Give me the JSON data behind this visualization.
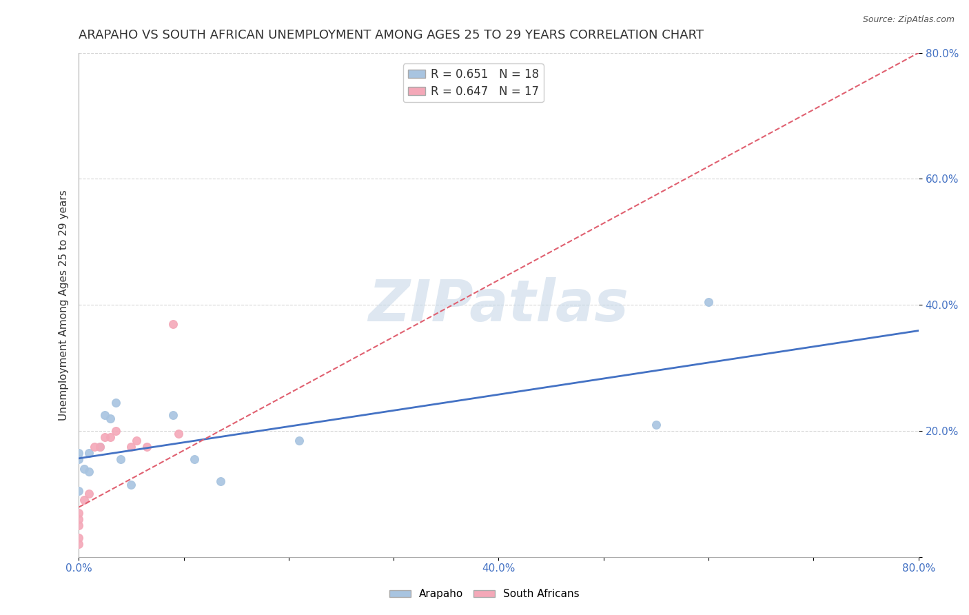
{
  "title": "ARAPAHO VS SOUTH AFRICAN UNEMPLOYMENT AMONG AGES 25 TO 29 YEARS CORRELATION CHART",
  "source": "Source: ZipAtlas.com",
  "ylabel": "Unemployment Among Ages 25 to 29 years",
  "xlabel": "",
  "xlim": [
    0.0,
    0.8
  ],
  "ylim": [
    0.0,
    0.8
  ],
  "xticks": [
    0.0,
    0.1,
    0.2,
    0.3,
    0.4,
    0.5,
    0.6,
    0.7,
    0.8
  ],
  "yticks": [
    0.0,
    0.2,
    0.4,
    0.6,
    0.8
  ],
  "arapaho_x": [
    0.0,
    0.0,
    0.0,
    0.005,
    0.01,
    0.01,
    0.02,
    0.025,
    0.03,
    0.035,
    0.04,
    0.05,
    0.09,
    0.11,
    0.135,
    0.21,
    0.55,
    0.6
  ],
  "arapaho_y": [
    0.155,
    0.165,
    0.105,
    0.14,
    0.135,
    0.165,
    0.175,
    0.225,
    0.22,
    0.245,
    0.155,
    0.115,
    0.225,
    0.155,
    0.12,
    0.185,
    0.21,
    0.405
  ],
  "south_african_x": [
    0.0,
    0.0,
    0.0,
    0.0,
    0.0,
    0.005,
    0.01,
    0.015,
    0.02,
    0.025,
    0.03,
    0.035,
    0.05,
    0.055,
    0.065,
    0.09,
    0.095
  ],
  "south_african_y": [
    0.02,
    0.03,
    0.05,
    0.06,
    0.07,
    0.09,
    0.1,
    0.175,
    0.175,
    0.19,
    0.19,
    0.2,
    0.175,
    0.185,
    0.175,
    0.37,
    0.195
  ],
  "arapaho_color": "#a8c4e0",
  "south_african_color": "#f4a8b8",
  "arapaho_line_color": "#4472c4",
  "south_african_line_color": "#e06070",
  "arapaho_R": "0.651",
  "arapaho_N": "18",
  "south_african_R": "0.647",
  "south_african_N": "17",
  "watermark": "ZIPatlas",
  "watermark_color": "#c8d8e8",
  "grid_color": "#cccccc",
  "background_color": "#ffffff",
  "title_fontsize": 13,
  "label_fontsize": 11,
  "tick_fontsize": 11
}
